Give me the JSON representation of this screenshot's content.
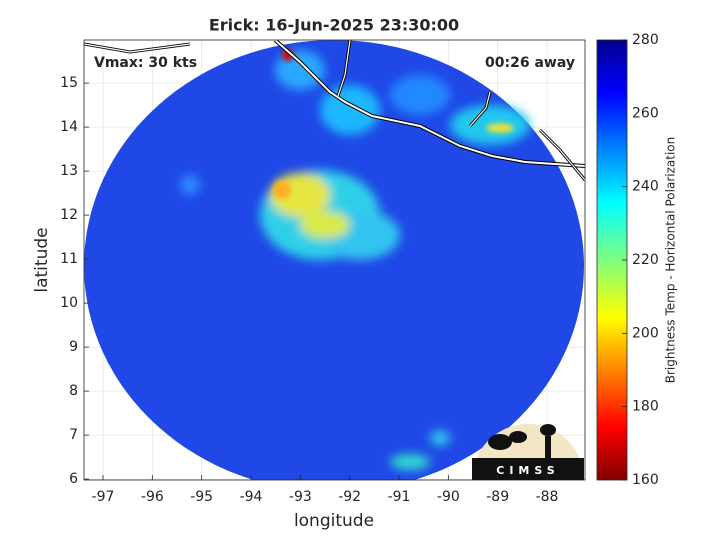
{
  "title": "Erick: 16-Jun-2025 23:30:00",
  "annotations": {
    "vmax": "Vmax: 30 kts",
    "time": "00:26 away"
  },
  "x_axis": {
    "label": "longitude",
    "lim": [
      -97.385,
      -87.23
    ],
    "ticks": [
      -97,
      -96,
      -95,
      -94,
      -93,
      -92,
      -91,
      -90,
      -89,
      -88
    ],
    "grid": true
  },
  "y_axis": {
    "label": "latitude",
    "lim": [
      5.98,
      15.98
    ],
    "ticks": [
      6,
      7,
      8,
      9,
      10,
      11,
      12,
      13,
      14,
      15
    ],
    "grid": true
  },
  "colorbar": {
    "label": "Brightness Temp - Horizontal Polarization",
    "lim": [
      160,
      280
    ],
    "ticks": [
      160,
      180,
      200,
      220,
      240,
      260,
      280
    ]
  },
  "logo": "CIMSS"
}
